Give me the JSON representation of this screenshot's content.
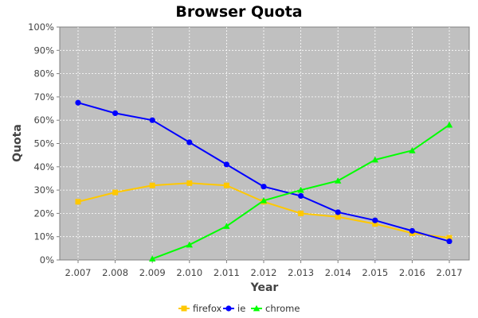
{
  "chart_data": {
    "type": "line",
    "title": "Browser Quota",
    "xlabel": "Year",
    "ylabel": "Quota",
    "categories": [
      "2.007",
      "2.008",
      "2.009",
      "2.010",
      "2.011",
      "2.012",
      "2.013",
      "2.014",
      "2.015",
      "2.016",
      "2.017"
    ],
    "yticks": [
      "0%",
      "10%",
      "20%",
      "30%",
      "40%",
      "50%",
      "60%",
      "70%",
      "80%",
      "90%",
      "100%"
    ],
    "ylim": [
      0,
      100
    ],
    "grid": true,
    "legend_position": "bottom",
    "plot_background": "#c0c0c0",
    "series": [
      {
        "name": "firefox",
        "color": "#ffc800",
        "marker": "square",
        "values": [
          25,
          29,
          32,
          33,
          32,
          25,
          20,
          18.5,
          15.5,
          11.5,
          9.5
        ]
      },
      {
        "name": "ie",
        "color": "#0000ff",
        "marker": "circle",
        "values": [
          67.5,
          63,
          60,
          50.5,
          41,
          31.5,
          27.5,
          20.5,
          17,
          12.5,
          8
        ]
      },
      {
        "name": "chrome",
        "color": "#00ff00",
        "marker": "triangle",
        "values": [
          null,
          null,
          0.5,
          6.5,
          14.5,
          25.5,
          30,
          34,
          43,
          47,
          58
        ]
      }
    ]
  }
}
